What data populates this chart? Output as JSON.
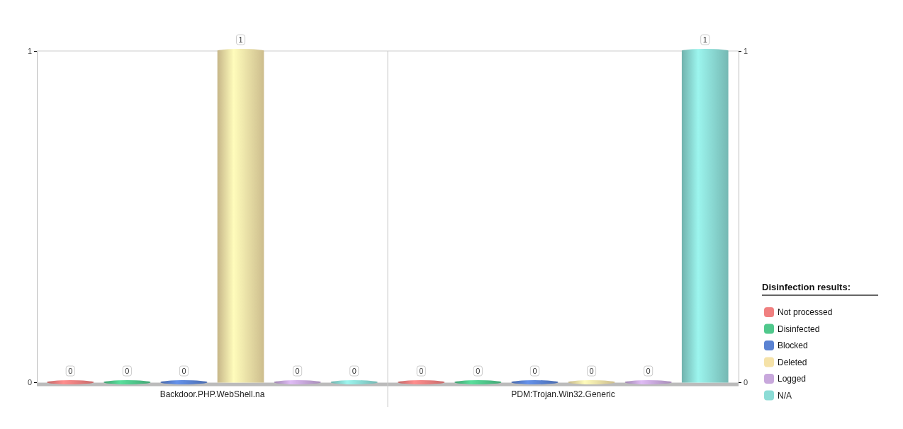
{
  "chart_data": {
    "type": "bar",
    "categories": [
      "Backdoor.PHP.WebShell.na",
      "PDM:Trojan.Win32.Generic"
    ],
    "series": [
      {
        "name": "Not processed",
        "color": "#f08080",
        "values": [
          0,
          0
        ]
      },
      {
        "name": "Disinfected",
        "color": "#50c88c",
        "values": [
          0,
          0
        ]
      },
      {
        "name": "Blocked",
        "color": "#5a82d2",
        "values": [
          0,
          0
        ]
      },
      {
        "name": "Deleted",
        "color": "#f5e2a8",
        "values": [
          1,
          0
        ]
      },
      {
        "name": "Logged",
        "color": "#c8a8dc",
        "values": [
          0,
          0
        ]
      },
      {
        "name": "N/A",
        "color": "#8cdcd6",
        "values": [
          0,
          1
        ]
      }
    ],
    "ylim": [
      0,
      1
    ],
    "yticks": [
      0,
      1
    ],
    "y2lim": [
      0,
      1
    ],
    "y2ticks": [
      0,
      1
    ],
    "data_labels": true,
    "legend": "bottom right",
    "legend_title": "Disinfection results:",
    "grid": false
  }
}
